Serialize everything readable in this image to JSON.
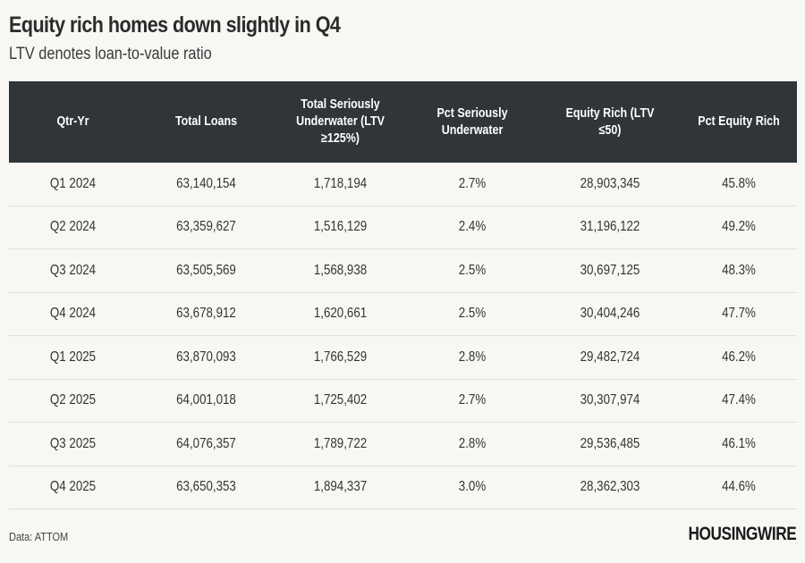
{
  "header": {
    "title": "Equity rich homes down slightly in Q4",
    "subtitle": "LTV denotes loan-to-value ratio"
  },
  "table": {
    "columns": [
      "Qtr-Yr",
      "Total Loans",
      "Total Seriously\nUnderwater (LTV\n≥125%)",
      "Pct Seriously\nUnderwater",
      "Equity Rich (LTV\n≤50)",
      "Pct Equity Rich"
    ],
    "rows": [
      [
        "Q1 2024",
        "63,140,154",
        "1,718,194",
        "2.7%",
        "28,903,345",
        "45.8%"
      ],
      [
        "Q2 2024",
        "63,359,627",
        "1,516,129",
        "2.4%",
        "31,196,122",
        "49.2%"
      ],
      [
        "Q3 2024",
        "63,505,569",
        "1,568,938",
        "2.5%",
        "30,697,125",
        "48.3%"
      ],
      [
        "Q4 2024",
        "63,678,912",
        "1,620,661",
        "2.5%",
        "30,404,246",
        "47.7%"
      ],
      [
        "Q1 2025",
        "63,870,093",
        "1,766,529",
        "2.8%",
        "29,482,724",
        "46.2%"
      ],
      [
        "Q2 2025",
        "64,001,018",
        "1,725,402",
        "2.7%",
        "30,307,974",
        "47.4%"
      ],
      [
        "Q3 2025",
        "64,076,357",
        "1,789,722",
        "2.8%",
        "29,536,485",
        "46.1%"
      ],
      [
        "Q4 2025",
        "63,650,353",
        "1,894,337",
        "3.0%",
        "28,362,303",
        "44.6%"
      ]
    ]
  },
  "footer": {
    "source": "Data: ATTOM",
    "logo": "HOUSINGWIRE"
  },
  "colors": {
    "background": "#f8f7f4",
    "header_bg": "#2f3538",
    "header_text": "#ffffff",
    "row_divider": "#e2e0dc",
    "text": "#333333"
  },
  "chart_data": {
    "type": "table",
    "title": "Equity rich homes down slightly in Q4",
    "subtitle": "LTV denotes loan-to-value ratio",
    "columns": [
      "Qtr-Yr",
      "Total Loans",
      "Total Seriously Underwater (LTV ≥125%)",
      "Pct Seriously Underwater",
      "Equity Rich (LTV ≤50)",
      "Pct Equity Rich"
    ],
    "categories": [
      "Q1 2024",
      "Q2 2024",
      "Q3 2024",
      "Q4 2024",
      "Q1 2025",
      "Q2 2025",
      "Q3 2025",
      "Q4 2025"
    ],
    "series": [
      {
        "name": "Total Loans",
        "values": [
          63140154,
          63359627,
          63505569,
          63678912,
          63870093,
          64001018,
          64076357,
          63650353
        ]
      },
      {
        "name": "Total Seriously Underwater (LTV ≥125%)",
        "values": [
          1718194,
          1516129,
          1568938,
          1620661,
          1766529,
          1725402,
          1789722,
          1894337
        ]
      },
      {
        "name": "Pct Seriously Underwater",
        "values": [
          2.7,
          2.4,
          2.5,
          2.5,
          2.8,
          2.7,
          2.8,
          3.0
        ]
      },
      {
        "name": "Equity Rich (LTV ≤50)",
        "values": [
          28903345,
          31196122,
          30697125,
          30404246,
          29482724,
          30307974,
          29536485,
          28362303
        ]
      },
      {
        "name": "Pct Equity Rich",
        "values": [
          45.8,
          49.2,
          48.3,
          47.7,
          46.2,
          47.4,
          46.1,
          44.6
        ]
      }
    ],
    "source": "Data: ATTOM"
  }
}
